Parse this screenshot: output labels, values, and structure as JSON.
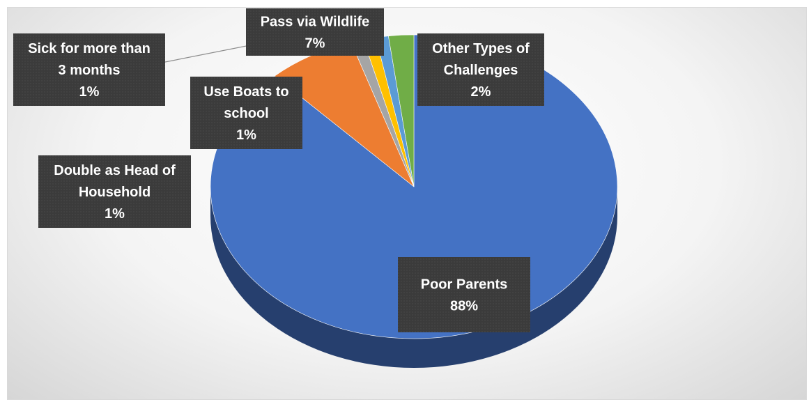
{
  "chart_data": {
    "type": "pie",
    "title": "",
    "slices": [
      {
        "label_lines": [
          "Poor Parents"
        ],
        "pct_label": "88%",
        "value": 88,
        "color": "#4472c4",
        "side_color": "#263f6e"
      },
      {
        "label_lines": [
          "Pass via Wildlife"
        ],
        "pct_label": "7%",
        "value": 7,
        "color": "#ed7d31",
        "side_color": "#8c4314"
      },
      {
        "label_lines": [
          "Sick for more than",
          "3 months"
        ],
        "pct_label": "1%",
        "value": 1,
        "color": "#a5a5a5",
        "side_color": "#5f5f5f"
      },
      {
        "label_lines": [
          "Use Boats to",
          "school"
        ],
        "pct_label": "1%",
        "value": 1,
        "color": "#ffc000",
        "side_color": "#8f6b00"
      },
      {
        "label_lines": [
          "Double as Head of",
          "Household"
        ],
        "pct_label": "1%",
        "value": 1,
        "color": "#5b9bd5",
        "side_color": "#2e5a82"
      },
      {
        "label_lines": [
          "Other Types of",
          "Challenges"
        ],
        "pct_label": "2%",
        "value": 2,
        "color": "#70ad47",
        "side_color": "#3d6326"
      }
    ],
    "label_style": {
      "box_color": "#3b3b3b",
      "text_color": "#ffffff"
    },
    "legend": "none"
  }
}
